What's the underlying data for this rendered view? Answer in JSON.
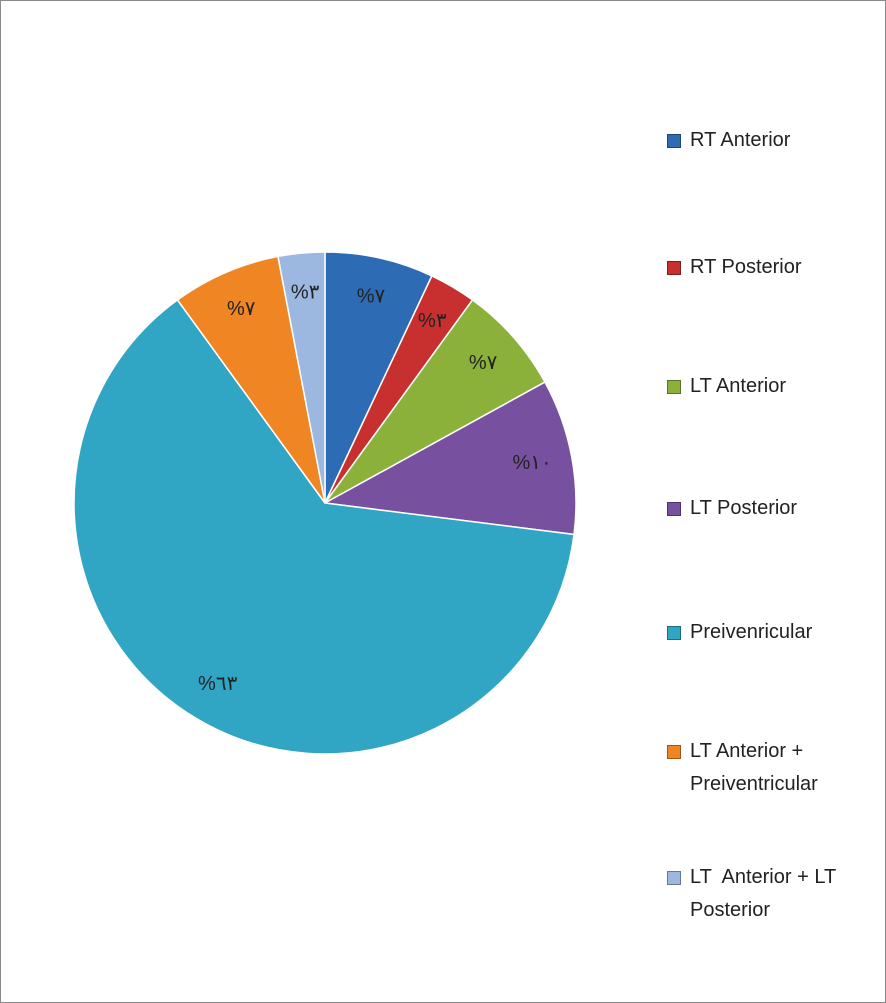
{
  "chart_data": {
    "type": "pie",
    "categories": [
      "RT Anterior",
      "RT Posterior",
      "LT Anterior",
      "LT Posterior",
      "Preivenricular",
      "LT Anterior + Preiventricular",
      "LT  Anterior + LT Posterior"
    ],
    "values": [
      7,
      3,
      7,
      10,
      63,
      7,
      3
    ],
    "value_labels": [
      "%٧",
      "%٣",
      "%٧",
      "%١٠",
      "%٦٣",
      "%٧",
      "%٣"
    ],
    "colors": [
      "#2e6bb5",
      "#c8302f",
      "#8bb13b",
      "#7750a0",
      "#31a6c4",
      "#f08524",
      "#9db8e0"
    ],
    "legend": "right"
  }
}
